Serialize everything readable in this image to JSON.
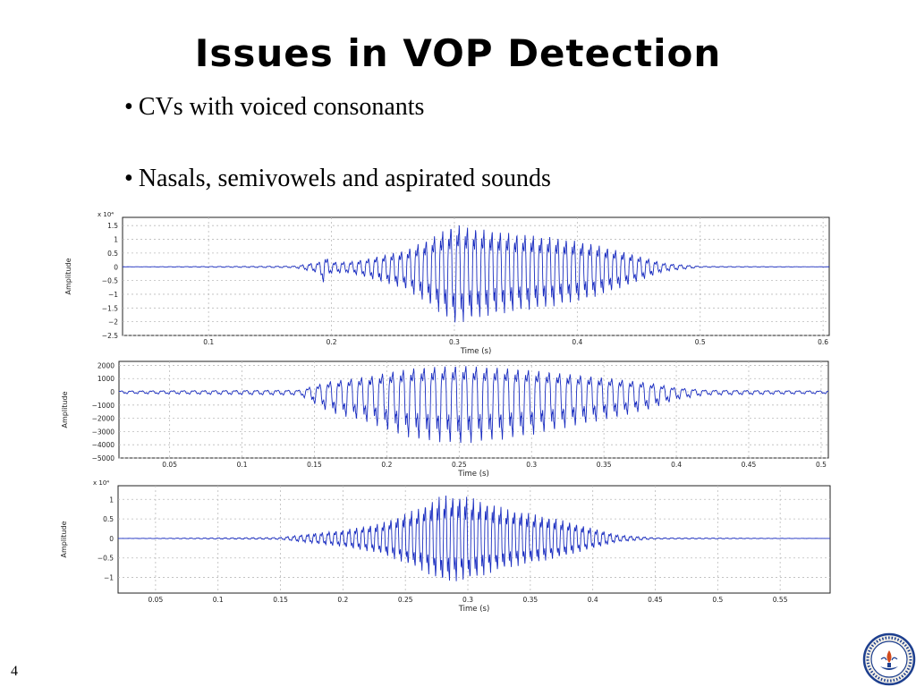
{
  "slide": {
    "title": "Issues in VOP Detection",
    "bullets": [
      "CVs with voiced consonants",
      "Nasals, semivowels and aspirated sounds"
    ],
    "page_number": "4"
  },
  "chart_data": [
    {
      "type": "line",
      "xlabel": "Time (s)",
      "ylabel": "Amplitude",
      "scale_note": "x 10⁴",
      "xlim": [
        0.03,
        0.605
      ],
      "ylim": [
        -2.5,
        1.8
      ],
      "xticks": [
        0.1,
        0.2,
        0.3,
        0.4,
        0.5,
        0.6
      ],
      "xtick_labels": [
        "0.1",
        "0.2",
        "0.3",
        "0.4",
        "0.5",
        "0.6"
      ],
      "yticks": [
        1.5,
        1,
        0.5,
        0,
        -0.5,
        -1,
        -1.5,
        -2,
        -2.5
      ],
      "ytick_labels": [
        "1.5",
        "1",
        "0.5",
        "0",
        "−0.5",
        "−1",
        "−1.5",
        "−2",
        "−2.5"
      ],
      "grid": true,
      "line_color": "#1a2dc0",
      "series": [
        {
          "envelope": {
            "x": [
              0.03,
              0.17,
              0.19,
              0.193,
              0.2,
              0.215,
              0.23,
              0.26,
              0.28,
              0.3,
              0.32,
              0.35,
              0.38,
              0.41,
              0.44,
              0.47,
              0.5,
              0.605
            ],
            "y": [
              0.0,
              0.03,
              0.2,
              0.5,
              0.2,
              0.2,
              0.35,
              0.7,
              1.2,
              1.8,
              1.6,
              1.4,
              1.25,
              1.0,
              0.6,
              0.15,
              0.02,
              0.0
            ]
          },
          "neg_scale": 1.35,
          "period": 0.0067
        }
      ]
    },
    {
      "type": "line",
      "xlabel": "Time (s)",
      "ylabel": "Amplitude",
      "xlim": [
        0.015,
        0.505
      ],
      "ylim": [
        -5000,
        2300
      ],
      "xticks": [
        0.05,
        0.1,
        0.15,
        0.2,
        0.25,
        0.3,
        0.35,
        0.4,
        0.45,
        0.5
      ],
      "xtick_labels": [
        "0.05",
        "0.1",
        "0.15",
        "0.2",
        "0.25",
        "0.3",
        "0.35",
        "0.4",
        "0.45",
        "0.5"
      ],
      "yticks": [
        2000,
        1000,
        0,
        -1000,
        -2000,
        -3000,
        -4000,
        -5000
      ],
      "ytick_labels": [
        "2000",
        "1000",
        "0",
        "−1000",
        "−2000",
        "−3000",
        "−4000",
        "−5000"
      ],
      "grid": true,
      "line_color": "#1a2dc0",
      "series": [
        {
          "envelope": {
            "x": [
              0.015,
              0.14,
              0.16,
              0.19,
              0.2,
              0.22,
              0.25,
              0.28,
              0.3,
              0.33,
              0.36,
              0.38,
              0.4,
              0.42,
              0.505
            ],
            "y": [
              80,
              150,
              900,
              1400,
              1700,
              2100,
              2300,
              2100,
              1900,
              1500,
              1100,
              800,
              350,
              150,
              80
            ]
          },
          "neg_scale": 2.0,
          "period": 0.0072
        }
      ]
    },
    {
      "type": "line",
      "xlabel": "Time (s)",
      "ylabel": "Amplitude",
      "scale_note": "x 10⁴",
      "xlim": [
        0.02,
        0.59
      ],
      "ylim": [
        -1.4,
        1.35
      ],
      "xticks": [
        0.05,
        0.1,
        0.15,
        0.2,
        0.25,
        0.3,
        0.35,
        0.4,
        0.45,
        0.5,
        0.55
      ],
      "xtick_labels": [
        "0.05",
        "0.1",
        "0.15",
        "0.2",
        "0.25",
        "0.3",
        "0.35",
        "0.4",
        "0.45",
        "0.5",
        "0.55"
      ],
      "yticks": [
        1,
        0.5,
        0,
        -0.5,
        -1
      ],
      "ytick_labels": [
        "1",
        "0.5",
        "0",
        "−0.5",
        "−1"
      ],
      "grid": true,
      "line_color": "#1a2dc0",
      "series": [
        {
          "envelope": {
            "x": [
              0.02,
              0.15,
              0.17,
              0.2,
              0.23,
              0.26,
              0.28,
              0.3,
              0.33,
              0.37,
              0.4,
              0.42,
              0.45,
              0.59
            ],
            "y": [
              0.0,
              0.03,
              0.12,
              0.25,
              0.45,
              0.9,
              1.3,
              1.25,
              0.9,
              0.6,
              0.3,
              0.1,
              0.02,
              0.0
            ]
          },
          "neg_scale": 1.0,
          "period": 0.0055
        }
      ]
    }
  ]
}
